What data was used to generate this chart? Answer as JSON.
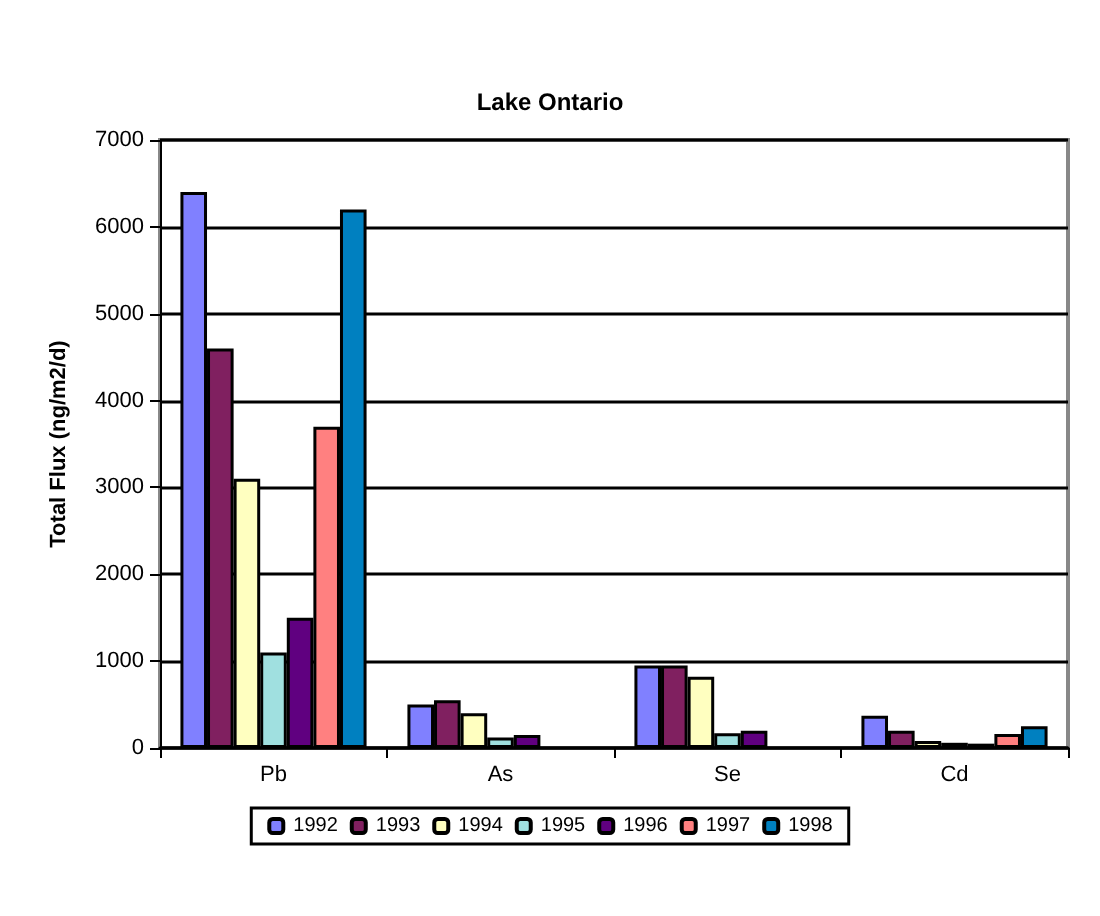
{
  "chart_data": {
    "type": "bar",
    "title": "Lake Ontario",
    "ylabel": "Total Flux (ng/m2/d)",
    "categories": [
      "Pb",
      "As",
      "Se",
      "Cd"
    ],
    "series": [
      {
        "name": "1992",
        "color": "#8080ff",
        "values": [
          6400,
          500,
          950,
          370
        ]
      },
      {
        "name": "1993",
        "color": "#802060",
        "values": [
          4600,
          550,
          950,
          200
        ]
      },
      {
        "name": "1994",
        "color": "#ffffc0",
        "values": [
          3100,
          400,
          820,
          80
        ]
      },
      {
        "name": "1995",
        "color": "#a0e0e0",
        "values": [
          1100,
          120,
          170,
          60
        ]
      },
      {
        "name": "1996",
        "color": "#600080",
        "values": [
          1500,
          150,
          200,
          50
        ]
      },
      {
        "name": "1997",
        "color": "#ff8080",
        "values": [
          3700,
          null,
          null,
          160
        ]
      },
      {
        "name": "1998",
        "color": "#0080c0",
        "values": [
          6200,
          null,
          null,
          250
        ]
      }
    ],
    "ylim": [
      0,
      7000
    ],
    "yticks": [
      0,
      1000,
      2000,
      3000,
      4000,
      5000,
      6000,
      7000
    ],
    "grid": "y",
    "legend": "bottom"
  }
}
